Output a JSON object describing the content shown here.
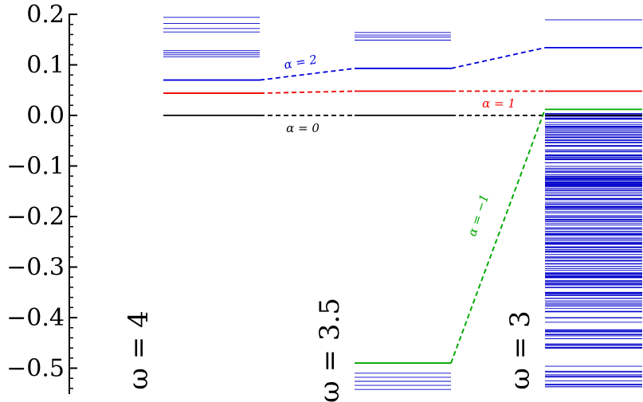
{
  "chart_data": {
    "type": "level-diagram",
    "title": "",
    "xlabel": "",
    "ylabel": "",
    "ylim": [
      -0.55,
      0.2
    ],
    "y_ticks": [
      {
        "value": 0.2,
        "label": "0.2"
      },
      {
        "value": 0.1,
        "label": "0.1"
      },
      {
        "value": 0.0,
        "label": "0.0"
      },
      {
        "value": -0.1,
        "label": "−0.1"
      },
      {
        "value": -0.2,
        "label": "−0.2"
      },
      {
        "value": -0.3,
        "label": "−0.3"
      },
      {
        "value": -0.4,
        "label": "−0.4"
      },
      {
        "value": -0.5,
        "label": "−0.5"
      }
    ],
    "groups": [
      {
        "label": "ω = 4",
        "background_levels": [
          0.194,
          0.182,
          0.172,
          0.165,
          0.128,
          0.124,
          0.12,
          0.116
        ],
        "levels": [
          {
            "series": "α = 2",
            "value": 0.07
          },
          {
            "series": "α = 1",
            "value": 0.044
          },
          {
            "series": "α = 0",
            "value": 0.0
          }
        ]
      },
      {
        "label": "ω = 3.5",
        "background_levels": [
          0.164,
          0.159,
          0.155,
          0.149,
          -0.51,
          -0.518,
          -0.526,
          -0.534,
          -0.542
        ],
        "bottom_level": {
          "series": "α = −1",
          "value": -0.49
        },
        "levels": [
          {
            "series": "α = 2",
            "value": 0.093
          },
          {
            "series": "α = 1",
            "value": 0.048
          },
          {
            "series": "α = 0",
            "value": 0.0
          }
        ]
      },
      {
        "label": "ω = 3",
        "background_levels": [
          0.189
        ],
        "levels": [
          {
            "series": "α = 2",
            "value": 0.134
          },
          {
            "series": "α = 1",
            "value": 0.048
          },
          {
            "series": "α = −1",
            "value": 0.012
          },
          {
            "series": "α = 0",
            "value": 0.0
          }
        ],
        "dense_band": {
          "from": -0.548,
          "to": 0.005,
          "approx_count": 240
        }
      }
    ],
    "series": [
      {
        "name": "α = 2",
        "color": "#0000dd",
        "values": [
          0.07,
          0.093,
          0.134
        ]
      },
      {
        "name": "α = 1",
        "color": "#ee0000",
        "values": [
          0.044,
          0.048,
          0.048
        ]
      },
      {
        "name": "α = 0",
        "color": "#000000",
        "values": [
          0.0,
          0.0,
          0.0
        ]
      },
      {
        "name": "α = −1",
        "color": "#00aa00",
        "values": [
          null,
          -0.49,
          0.012
        ]
      }
    ],
    "background_color": "#0000cc",
    "grid": false,
    "legend": "inline"
  }
}
